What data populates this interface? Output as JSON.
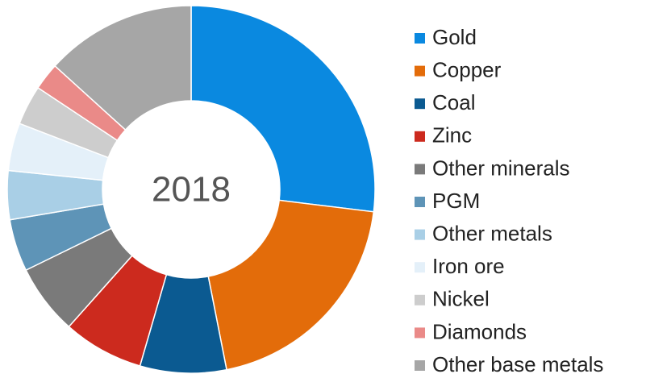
{
  "chart_data": {
    "type": "donut",
    "center_label": "2018",
    "categories": [
      "Gold",
      "Copper",
      "Coal",
      "Zinc",
      "Other minerals",
      "PGM",
      "Other metals",
      "Iron ore",
      "Nickel",
      "Diamonds",
      "Other base metals"
    ],
    "values": [
      27,
      20,
      7.6,
      7.1,
      6.2,
      4.6,
      4.3,
      4.2,
      3.5,
      2.4,
      13.3
    ],
    "colors": [
      "#0a89e0",
      "#e36c0a",
      "#0b5a91",
      "#cc2a1e",
      "#7a7a7a",
      "#5e94b7",
      "#a9cfe6",
      "#e4f0f9",
      "#cdcdcd",
      "#ea8a88",
      "#a6a6a6"
    ],
    "legend": "right"
  }
}
